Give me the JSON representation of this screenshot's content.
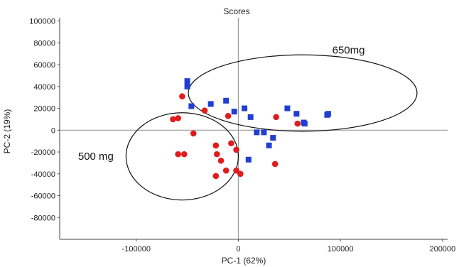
{
  "chart_data": {
    "type": "scatter",
    "title": "Scores",
    "xlabel": "PC-1 (62%)",
    "ylabel": "PC-2 (19%)",
    "xlim": [
      -175000,
      205000
    ],
    "ylim": [
      -100000,
      103000
    ],
    "x_ticks": [
      -100000,
      0,
      100000,
      200000
    ],
    "y_ticks": [
      100000,
      80000,
      60000,
      40000,
      20000,
      0,
      -20000,
      -40000,
      -60000,
      -80000
    ],
    "grid": false,
    "series": [
      {
        "color": "#1f3fd0",
        "marker": "square",
        "points": [
          [
            -50000,
            45000
          ],
          [
            -50000,
            40000
          ],
          [
            -46000,
            22000
          ],
          [
            -27000,
            24000
          ],
          [
            -12000,
            27000
          ],
          [
            -4000,
            17000
          ],
          [
            6000,
            20000
          ],
          [
            12000,
            12000
          ],
          [
            18000,
            -2000
          ],
          [
            25000,
            -2000
          ],
          [
            30000,
            -14000
          ],
          [
            34000,
            -7000
          ],
          [
            48000,
            20000
          ],
          [
            57000,
            15000
          ],
          [
            64000,
            7000
          ],
          [
            65000,
            6000
          ],
          [
            87000,
            14000
          ],
          [
            88000,
            15000
          ],
          [
            10000,
            -27000
          ]
        ]
      },
      {
        "color": "#e01c1c",
        "marker": "circle",
        "points": [
          [
            -55000,
            31000
          ],
          [
            -33000,
            18000
          ],
          [
            -10000,
            13000
          ],
          [
            -64000,
            10000
          ],
          [
            -59000,
            11000
          ],
          [
            -44000,
            -3000
          ],
          [
            -59000,
            -22000
          ],
          [
            -53000,
            -22000
          ],
          [
            -22000,
            -14000
          ],
          [
            -21000,
            -22000
          ],
          [
            -17000,
            -28000
          ],
          [
            -12000,
            -37000
          ],
          [
            -22000,
            -42000
          ],
          [
            -7000,
            -12000
          ],
          [
            -2000,
            -18000
          ],
          [
            -2000,
            -37000
          ],
          [
            2000,
            -40000
          ],
          [
            37000,
            12000
          ],
          [
            36000,
            -31000
          ],
          [
            58000,
            6000
          ]
        ]
      }
    ],
    "ellipses": [
      {
        "cx": 63000,
        "cy": 34000,
        "rx": 112000,
        "ry": 35000
      },
      {
        "cx": -55000,
        "cy": -24000,
        "rx": 55000,
        "ry": 40000
      }
    ],
    "annotations": [
      {
        "text": "650mg",
        "x": 92000,
        "y": 70000
      },
      {
        "text": "500 mg",
        "x": -157000,
        "y": -27000
      }
    ]
  }
}
